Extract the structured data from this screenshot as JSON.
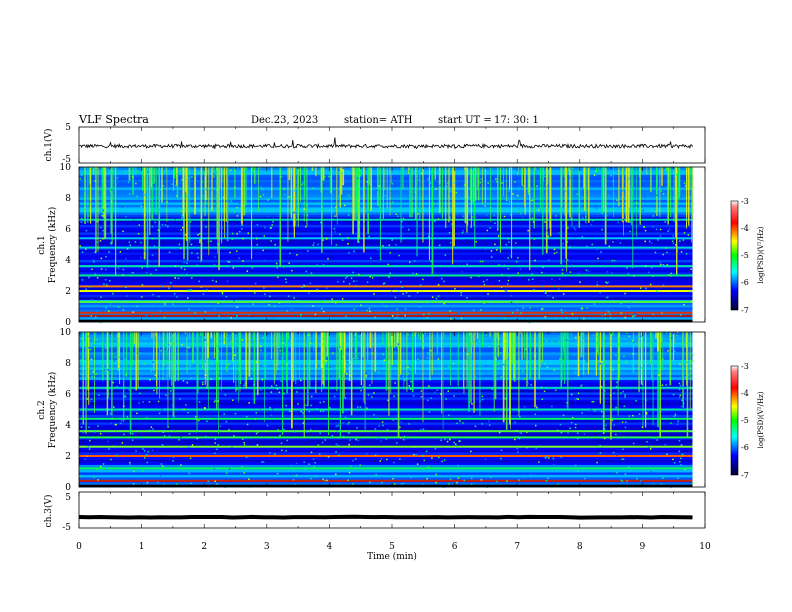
{
  "header": {
    "title": "VLF  Spectra",
    "date": "Dec.23, 2023",
    "station": "station= ATH",
    "start_label": "start  UT  =",
    "start_time": "17: 30: 1"
  },
  "chart_data": [
    {
      "type": "line",
      "name": "ch1-waveform",
      "ylabel": "ch.1(V)",
      "ylim": [
        -5,
        5
      ],
      "yticks": [
        "5",
        "-5"
      ],
      "xlim": [
        0,
        10
      ],
      "baseline": -0.3,
      "noise_amplitude": 0.5,
      "colors": {
        "line": "#000000"
      }
    },
    {
      "type": "heatmap",
      "name": "ch1-spectrogram",
      "ylabel_line1": "ch.1",
      "ylabel_line2": "Frequency  (kHz)",
      "ylim": [
        0,
        10
      ],
      "yticks": [
        "0",
        "2",
        "4",
        "6",
        "8",
        "10"
      ],
      "xlim": [
        0,
        10
      ],
      "data_end_min": 9.8,
      "colorbar": {
        "label": "log(PSD)(V²/Hz)",
        "range": [
          -7,
          -3
        ],
        "ticks": [
          "-3",
          "-4",
          "-5",
          "-6",
          "-7"
        ]
      },
      "bands": [
        {
          "f": 0.4,
          "v": -3.3
        },
        {
          "f": 0.6,
          "v": -3.6
        },
        {
          "f": 1.3,
          "v": -4.8
        },
        {
          "f": 2.0,
          "v": -4.4
        },
        {
          "f": 2.3,
          "v": -4.0
        },
        {
          "f": 3.0,
          "v": -5.2
        },
        {
          "f": 3.6,
          "v": -5.3
        },
        {
          "f": 4.8,
          "v": -5.5
        },
        {
          "f": 5.4,
          "v": -5.6
        },
        {
          "f": 6.6,
          "v": -5.4
        }
      ]
    },
    {
      "type": "heatmap",
      "name": "ch2-spectrogram",
      "ylabel_line1": "ch.2",
      "ylabel_line2": "Frequency  (kHz)",
      "ylim": [
        0,
        10
      ],
      "yticks": [
        "0",
        "2",
        "4",
        "6",
        "8",
        "10"
      ],
      "xlim": [
        0,
        10
      ],
      "data_end_min": 9.8,
      "colorbar": {
        "label": "log(PSD)(V²/Hz)",
        "range": [
          -7,
          -3
        ],
        "ticks": [
          "-3",
          "-4",
          "-5",
          "-6",
          "-7"
        ]
      },
      "bands": [
        {
          "f": 0.4,
          "v": -3.4
        },
        {
          "f": 1.2,
          "v": -5.0
        },
        {
          "f": 2.0,
          "v": -3.9
        },
        {
          "f": 2.6,
          "v": -4.7
        },
        {
          "f": 3.2,
          "v": -4.9
        },
        {
          "f": 3.6,
          "v": -4.8
        },
        {
          "f": 4.4,
          "v": -5.1
        },
        {
          "f": 5.0,
          "v": -5.3
        },
        {
          "f": 6.4,
          "v": -5.4
        }
      ]
    },
    {
      "type": "line",
      "name": "ch3-waveform",
      "ylabel": "ch.3(V)",
      "ylim": [
        -5,
        5
      ],
      "yticks": [
        "5",
        "-5"
      ],
      "xlim": [
        0,
        10
      ],
      "xticks": [
        "0",
        "1",
        "2",
        "3",
        "4",
        "5",
        "6",
        "7",
        "8",
        "9",
        "10"
      ],
      "xlabel": "Time  (min)",
      "baseline": -2.0,
      "noise_amplitude": 0.1,
      "colors": {
        "line": "#000000"
      }
    }
  ],
  "colorbar_colors": [
    "#800000",
    "#ff0000",
    "#ffff00",
    "#00ff00",
    "#00ffff",
    "#0000ff",
    "#000080"
  ]
}
